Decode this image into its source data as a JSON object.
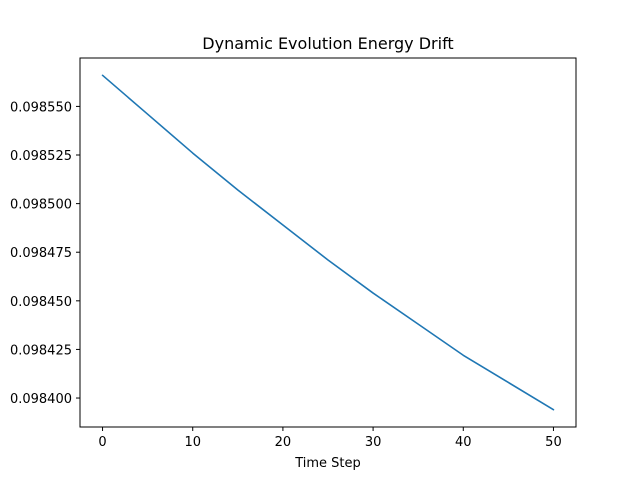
{
  "chart_data": {
    "type": "line",
    "title": "Dynamic Evolution Energy Drift",
    "xlabel": "Time Step",
    "ylabel": "",
    "xlim": [
      -2.5,
      52.5
    ],
    "ylim": [
      0.0983851,
      0.0985749
    ],
    "xticks": [
      0,
      10,
      20,
      30,
      40,
      50
    ],
    "xtick_labels": [
      "0",
      "10",
      "20",
      "30",
      "40",
      "50"
    ],
    "yticks": [
      0.0984,
      0.098425,
      0.09845,
      0.098475,
      0.0985,
      0.098525,
      0.09855
    ],
    "ytick_labels": [
      "0.098400",
      "0.098425",
      "0.098450",
      "0.098475",
      "0.098500",
      "0.098525",
      "0.098550"
    ],
    "grid": false,
    "series": [
      {
        "color": "#1f77b4",
        "x": [
          0,
          5,
          10,
          15,
          20,
          25,
          30,
          35,
          40,
          45,
          50
        ],
        "y": [
          0.098566,
          0.098546,
          0.098526,
          0.098507,
          0.098489,
          0.098471,
          0.098454,
          0.098438,
          0.098422,
          0.098408,
          0.098394
        ]
      }
    ]
  }
}
